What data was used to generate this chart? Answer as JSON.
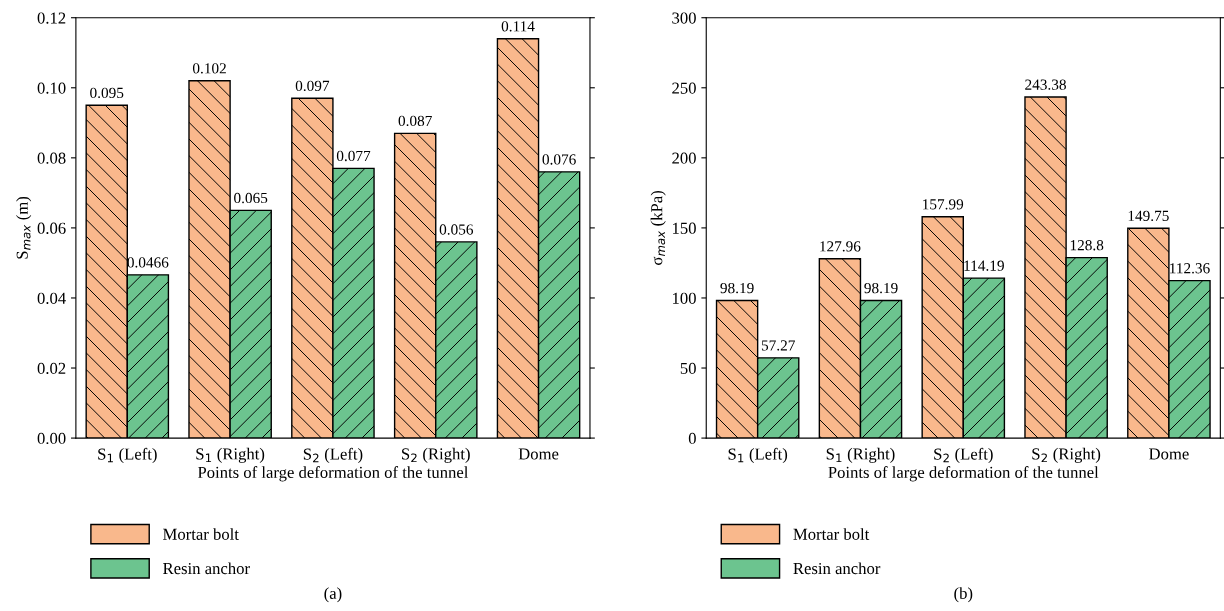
{
  "chart_data": [
    {
      "type": "bar",
      "categories": [
        "S$_{1}$ (Left)",
        "S$_{1}$ (Right)",
        "S$_{2}$ (Left)",
        "S$_{2}$ (Right)",
        "Dome"
      ],
      "series": [
        {
          "name": "Mortar bolt",
          "color": "#f9b88c",
          "values": [
            0.095,
            0.102,
            0.097,
            0.087,
            0.114
          ]
        },
        {
          "name": "Resin anchor",
          "color": "#6cc48f",
          "values": [
            0.0466,
            0.065,
            0.077,
            0.056,
            0.076
          ]
        }
      ],
      "xlabel": "Points of large deformation of the tunnel",
      "ylabel": "S$_{max}$ (m)",
      "ylim": [
        0,
        0.12
      ],
      "yticks": [
        {
          "value": 0,
          "label": "0.00"
        },
        {
          "value": 0.02,
          "label": "0.02"
        },
        {
          "value": 0.04,
          "label": "0.04"
        },
        {
          "value": 0.06,
          "label": "0.06"
        },
        {
          "value": 0.08,
          "label": "0.08"
        },
        {
          "value": 0.1,
          "label": "0.10"
        },
        {
          "value": 0.12,
          "label": "0.12"
        }
      ],
      "data_labels": true,
      "legend": "bottom left",
      "grid": false,
      "annotations": [
        "(a)"
      ]
    },
    {
      "type": "bar",
      "categories": [
        "S$_{1}$ (Left)",
        "S$_{1}$ (Right)",
        "S$_{2}$ (Left)",
        "S$_{2}$ (Right)",
        "Dome"
      ],
      "series": [
        {
          "name": "Mortar bolt",
          "color": "#f9b88c",
          "values": [
            98.19,
            127.96,
            157.99,
            243.38,
            149.75
          ]
        },
        {
          "name": "Resin anchor",
          "color": "#6cc48f",
          "values": [
            57.27,
            98.19,
            114.19,
            128.8,
            112.36
          ]
        }
      ],
      "xlabel": "Points of large deformation of the tunnel",
      "ylabel": "σ$_{max}$ (kPa)",
      "ylim": [
        0,
        300
      ],
      "yticks": [
        0,
        50,
        100,
        150,
        200,
        250,
        300
      ],
      "data_labels": true,
      "legend": "bottom left",
      "grid": false,
      "annotations": [
        "(b)"
      ]
    }
  ]
}
